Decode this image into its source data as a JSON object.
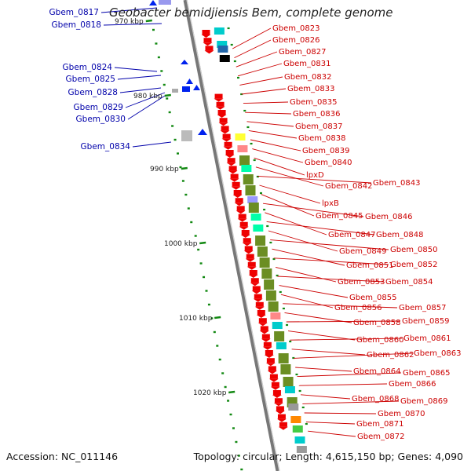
{
  "header": {
    "title": "Geobacter bemidjiensis Bem, complete genome"
  },
  "footer": {
    "accession": "Accession: NC_011146",
    "summary": "Topology: circular; Length: 4,615,150 bp; Genes: 4,090"
  },
  "ruler_labels": [
    "970 kbp",
    "980 kbp",
    "990 kbp",
    "1000 kbp",
    "1010 kbp",
    "1020 kbp"
  ],
  "reverse_genes": [
    "Gbem_0817",
    "Gbem_0818",
    "Gbem_0824",
    "Gbem_0825",
    "Gbem_0828",
    "Gbem_0829",
    "Gbem_0830",
    "Gbem_0834"
  ],
  "forward_genes": [
    "Gbem_0823",
    "Gbem_0826",
    "Gbem_0827",
    "Gbem_0831",
    "Gbem_0832",
    "Gbem_0833",
    "Gbem_0835",
    "Gbem_0836",
    "Gbem_0837",
    "Gbem_0838",
    "Gbem_0839",
    "Gbem_0840",
    "lpxD",
    "Gbem_0842",
    "Gbem_0843",
    "lpxB",
    "Gbem_0845",
    "Gbem_0846",
    "Gbem_0847",
    "Gbem_0848",
    "Gbem_0849",
    "Gbem_0850",
    "Gbem_0851",
    "Gbem_0852",
    "Gbem_0853",
    "Gbem_0854",
    "Gbem_0855",
    "Gbem_0856",
    "Gbem_0857",
    "Gbem_0858",
    "Gbem_0859",
    "Gbem_0860",
    "Gbem_0861",
    "Gbem_0862",
    "Gbem_0863",
    "Gbem_0864",
    "Gbem_0865",
    "Gbem_0866",
    "Gbem_0868",
    "Gbem_0869",
    "Gbem_0870",
    "Gbem_0871",
    "Gbem_0872"
  ],
  "colors": {
    "forward_label": "#cc0000",
    "reverse_label": "#0000aa",
    "forward_gene": "#ee0000",
    "reverse_gene": "#0022ee",
    "backbone": "#888888",
    "tick": "#118811",
    "cog": [
      "#6b8e23",
      "#00cccc",
      "#ff8888",
      "#ffff33",
      "#9999ff",
      "#00ffaa",
      "#999999",
      "#ff8800",
      "#44cc44",
      "#888888",
      "#2266aa"
    ]
  }
}
